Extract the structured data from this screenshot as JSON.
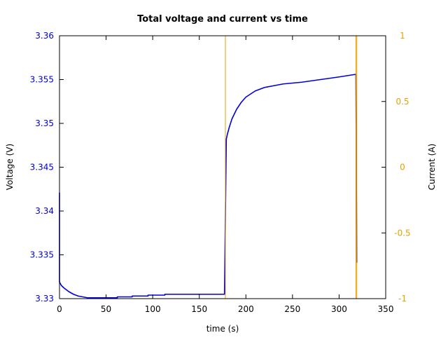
{
  "chart_data": {
    "type": "line",
    "title": "Total voltage and current vs time",
    "xlabel": "time (s)",
    "ylabel_left": "Voltage (V)",
    "ylabel_right": "Current (A)",
    "xlim": [
      0,
      350
    ],
    "ylim_left": [
      3.33,
      3.36
    ],
    "ylim_right": [
      -1,
      1
    ],
    "xticks": [
      "0",
      "50",
      "100",
      "150",
      "200",
      "250",
      "300",
      "350"
    ],
    "yticks_left": [
      "3.33",
      "3.335",
      "3.34",
      "3.345",
      "3.35",
      "3.355",
      "3.36"
    ],
    "yticks_right": [
      "-1",
      "-0.5",
      "0",
      "0.5",
      "1"
    ],
    "grid": false,
    "colors": {
      "voltage": "#0000dd",
      "current": "#e8a000",
      "axis": "#000000"
    },
    "series": [
      {
        "axis": "left",
        "points": [
          [
            0,
            3.3421
          ],
          [
            0,
            3.3319
          ],
          [
            2,
            3.3315
          ],
          [
            5,
            3.3312
          ],
          [
            10,
            3.3308
          ],
          [
            15,
            3.3305
          ],
          [
            20,
            3.3303
          ],
          [
            25,
            3.3302
          ],
          [
            30,
            3.3301
          ],
          [
            35,
            3.3301
          ],
          [
            40,
            3.3301
          ],
          [
            62,
            3.3301
          ],
          [
            62,
            3.3302
          ],
          [
            78,
            3.3302
          ],
          [
            78,
            3.3303
          ],
          [
            95,
            3.3303
          ],
          [
            95,
            3.3304
          ],
          [
            113,
            3.3304
          ],
          [
            113,
            3.3305
          ],
          [
            177,
            3.3305
          ],
          [
            179,
            3.3482
          ],
          [
            180,
            3.3487
          ],
          [
            182,
            3.3495
          ],
          [
            185,
            3.3505
          ],
          [
            190,
            3.3516
          ],
          [
            195,
            3.3524
          ],
          [
            200,
            3.353
          ],
          [
            210,
            3.3537
          ],
          [
            220,
            3.3541
          ],
          [
            230,
            3.3543
          ],
          [
            240,
            3.3545
          ],
          [
            260,
            3.3547
          ],
          [
            280,
            3.355
          ],
          [
            300,
            3.3553
          ],
          [
            318,
            3.3556
          ],
          [
            319,
            3.3341
          ]
        ]
      },
      {
        "axis": "right",
        "points": [
          [
            178,
            1.0
          ],
          [
            178,
            -1.0
          ],
          [
            318,
            -1.0
          ],
          [
            318,
            1.0
          ],
          [
            319,
            1.0
          ],
          [
            319,
            -1.0
          ]
        ]
      }
    ]
  }
}
